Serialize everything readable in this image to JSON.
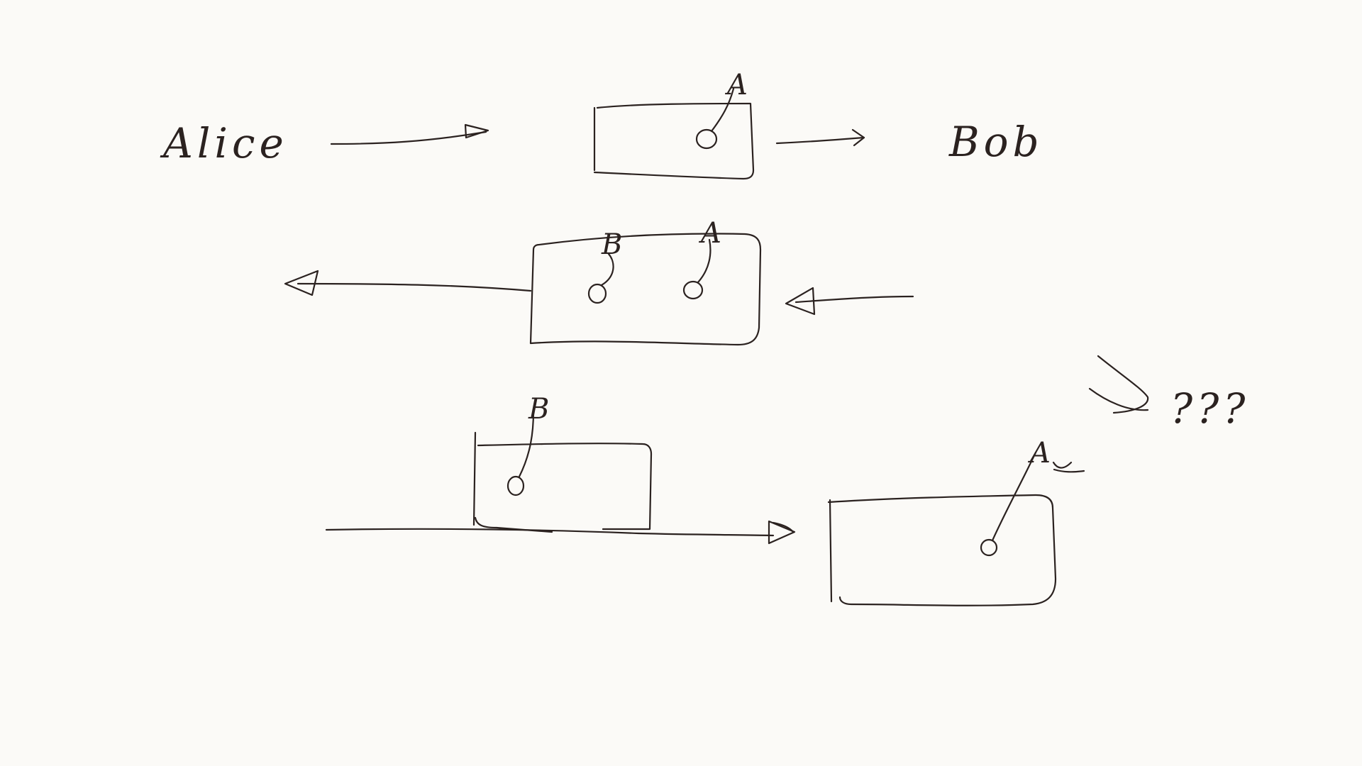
{
  "diagram": {
    "participants": {
      "left": "Alice",
      "right": "Bob"
    },
    "steps": [
      {
        "locks": [
          "A"
        ]
      },
      {
        "locks": [
          "B",
          "A"
        ]
      },
      {
        "locks": [
          "B"
        ]
      }
    ],
    "intercept": {
      "lock": "A",
      "annotation": "???"
    },
    "ink_color": "#2b2220",
    "paper_color": "#fbfaf7"
  }
}
